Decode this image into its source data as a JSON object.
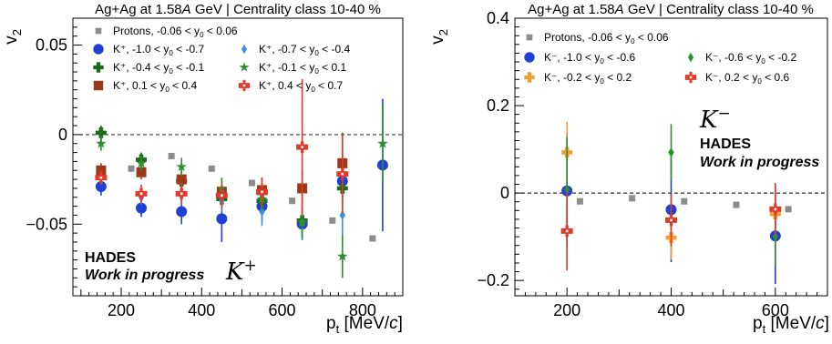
{
  "chart_data": [
    {
      "type": "scatter",
      "title": "Ag+Ag at 1.58A GeV | Centrality class 10-40 %",
      "ylabel": "v2",
      "xlabel": "pt [MeV/c]",
      "xlim": [
        80,
        900
      ],
      "ylim": [
        -0.09,
        0.065
      ],
      "xticks": [
        200,
        400,
        600,
        800
      ],
      "xtick_labels": [
        "200",
        "400",
        "600",
        "800"
      ],
      "yticks": [
        -0.05,
        0,
        0.05
      ],
      "ytick_labels": [
        "−0.05",
        "0",
        "0.05"
      ],
      "grid": false,
      "zero_line": true,
      "legend_placement": "top",
      "experiment": "HADES",
      "status": "Work in progress",
      "particle_label": "K+",
      "series": [
        {
          "name": "Protons, -0.06 < y0 < 0.06",
          "label_main": "Protons, -0.06 < y",
          "label_sub": "0",
          "label_tail": " < 0.06",
          "color": "#8c8c8c",
          "marker": "square-small",
          "points": [
            [
              225,
              -0.019
            ],
            [
              325,
              -0.012
            ],
            [
              425,
              -0.019
            ],
            [
              525,
              -0.027
            ],
            [
              625,
              -0.037
            ],
            [
              725,
              -0.048
            ],
            [
              825,
              -0.058
            ]
          ],
          "errors": [
            0,
            0,
            0,
            0,
            0,
            0,
            0
          ]
        },
        {
          "name": "K+, -1.0 < y0 < -0.7",
          "label_main": "K⁺, -1.0 < y",
          "label_sub": "0",
          "label_tail": " < -0.7",
          "color": "#1f3fd6",
          "marker": "circle",
          "points": [
            [
              150,
              -0.029
            ],
            [
              250,
              -0.041
            ],
            [
              350,
              -0.043
            ],
            [
              450,
              -0.047
            ],
            [
              550,
              -0.04
            ],
            [
              650,
              -0.05
            ],
            [
              750,
              -0.026
            ],
            [
              850,
              -0.017
            ]
          ],
          "errors": [
            0.005,
            0.005,
            0.007,
            0.013,
            0.008,
            0.009,
            0.012,
            0.037
          ]
        },
        {
          "name": "K+, -0.4 < y0 < -0.1",
          "label_main": "K⁺, -0.4 < y",
          "label_sub": "0",
          "label_tail": " < -0.1",
          "color": "#1b6b1b",
          "marker": "cross",
          "points": [
            [
              150,
              0.001
            ],
            [
              250,
              -0.014
            ],
            [
              350,
              -0.026
            ],
            [
              450,
              -0.036
            ],
            [
              550,
              -0.037
            ],
            [
              650,
              -0.048
            ],
            [
              750,
              -0.03
            ]
          ],
          "errors": [
            0.004,
            0.004,
            0.005,
            0.006,
            0.007,
            0.009,
            0.012
          ]
        },
        {
          "name": "K+, 0.1 < y0 < 0.4",
          "label_main": "K⁺, 0.1 < y",
          "label_sub": "0",
          "label_tail": " < 0.4",
          "color": "#9a3a18",
          "marker": "square",
          "points": [
            [
              150,
              -0.02
            ],
            [
              250,
              -0.021
            ],
            [
              350,
              -0.025
            ],
            [
              450,
              -0.032
            ],
            [
              550,
              -0.031
            ],
            [
              650,
              -0.03
            ],
            [
              750,
              -0.016
            ]
          ],
          "errors": [
            0.004,
            0.004,
            0.005,
            0.006,
            0.007,
            0.01,
            0.017
          ]
        },
        {
          "name": "K+, -0.7 < y0 < -0.4",
          "label_main": "K⁺, -0.7 < y",
          "label_sub": "0",
          "label_tail": " < -0.4",
          "color": "#3f8fe0",
          "marker": "diamond",
          "points": [
            [
              150,
              -0.024
            ],
            [
              250,
              -0.035
            ],
            [
              350,
              -0.034
            ],
            [
              450,
              -0.037
            ],
            [
              550,
              -0.043
            ],
            [
              650,
              -0.049
            ],
            [
              750,
              -0.045
            ]
          ],
          "errors": [
            0.004,
            0.004,
            0.005,
            0.006,
            0.008,
            0.01,
            0.014
          ]
        },
        {
          "name": "K+, -0.1 < y0 < 0.1",
          "label_main": "K⁺, -0.1 < y",
          "label_sub": "0",
          "label_tail": " < 0.1",
          "color": "#2f8f2f",
          "marker": "star",
          "points": [
            [
              150,
              -0.005
            ],
            [
              250,
              -0.016
            ],
            [
              350,
              -0.018
            ],
            [
              450,
              -0.03
            ],
            [
              550,
              -0.036
            ],
            [
              650,
              -0.049
            ],
            [
              750,
              -0.068
            ],
            [
              850,
              -0.005
            ]
          ],
          "errors": [
            0.004,
            0.004,
            0.005,
            0.006,
            0.007,
            0.009,
            0.012,
            0.022
          ]
        },
        {
          "name": "K+, 0.4 < y0 < 0.7",
          "label_main": "K⁺, 0.4 < y",
          "label_sub": "0",
          "label_tail": " < 0.7",
          "color": "#e03a2a",
          "marker": "asterisk",
          "points": [
            [
              150,
              -0.024
            ],
            [
              250,
              -0.033
            ],
            [
              350,
              -0.033
            ],
            [
              450,
              -0.034
            ],
            [
              550,
              -0.032
            ],
            [
              650,
              -0.007
            ],
            [
              750,
              -0.022
            ]
          ],
          "errors": [
            0.004,
            0.005,
            0.006,
            0.007,
            0.008,
            0.038,
            0.022
          ]
        }
      ]
    },
    {
      "type": "scatter",
      "title": "Ag+Ag at 1.58A GeV | Centrality class 10-40 %",
      "ylabel": "v2",
      "xlabel": "pt [MeV/c]",
      "xlim": [
        100,
        700
      ],
      "ylim": [
        -0.235,
        0.4
      ],
      "xticks": [
        200,
        400,
        600
      ],
      "xtick_labels": [
        "200",
        "400",
        "600"
      ],
      "yticks": [
        -0.2,
        0,
        0.2,
        0.4
      ],
      "ytick_labels": [
        "−0.2",
        "0",
        "0.2",
        "0.4"
      ],
      "grid": false,
      "zero_line": true,
      "legend_placement": "top",
      "experiment": "HADES",
      "status": "Work in progress",
      "particle_label": "K−",
      "series": [
        {
          "name": "Protons, -0.06 < y0 < 0.06",
          "label_main": "Protons, -0.06 < y",
          "label_sub": "0",
          "label_tail": " <  0.06",
          "color": "#8c8c8c",
          "marker": "square-small",
          "points": [
            [
              225,
              -0.019
            ],
            [
              325,
              -0.012
            ],
            [
              425,
              -0.019
            ],
            [
              525,
              -0.027
            ],
            [
              625,
              -0.037
            ]
          ],
          "errors": [
            0,
            0,
            0,
            0,
            0
          ]
        },
        {
          "name": "K-, -1.0 < y0 < -0.6",
          "label_main": "K⁻, -1.0 < y",
          "label_sub": "0",
          "label_tail": " < -0.6",
          "color": "#1f3fd6",
          "marker": "circle",
          "points": [
            [
              200,
              0.005
            ],
            [
              400,
              -0.038
            ],
            [
              600,
              -0.098
            ]
          ],
          "errors": [
            0.13,
            0.12,
            0.11
          ]
        },
        {
          "name": "K-, -0.2 < y0 < 0.2",
          "label_main": "K⁻, -0.2 < y",
          "label_sub": "0",
          "label_tail": " < 0.2",
          "color": "#f0a030",
          "marker": "cross",
          "points": [
            [
              200,
              0.093
            ],
            [
              400,
              -0.102
            ],
            [
              600,
              -0.048
            ]
          ],
          "errors": [
            0.07,
            0.05,
            0.05
          ]
        },
        {
          "name": "K-, -0.6 < y0 < -0.2",
          "label_main": "K⁻, -0.6 < y",
          "label_sub": "0",
          "label_tail": " < -0.2",
          "color": "#2f8f2f",
          "marker": "diamond",
          "points": [
            [
              200,
              0.008
            ],
            [
              400,
              0.093
            ],
            [
              600,
              -0.1
            ]
          ],
          "errors": [
            0.12,
            0.065,
            0.065
          ]
        },
        {
          "name": "K-, 0.2 < y0 < 0.6",
          "label_main": "K⁻, 0.2 < y",
          "label_sub": "0",
          "label_tail": " < 0.6",
          "color": "#e03a2a",
          "marker": "asterisk",
          "points": [
            [
              200,
              -0.087
            ],
            [
              400,
              -0.062
            ],
            [
              600,
              -0.037
            ]
          ],
          "errors": [
            0.09,
            0.06,
            0.06
          ]
        }
      ]
    }
  ]
}
